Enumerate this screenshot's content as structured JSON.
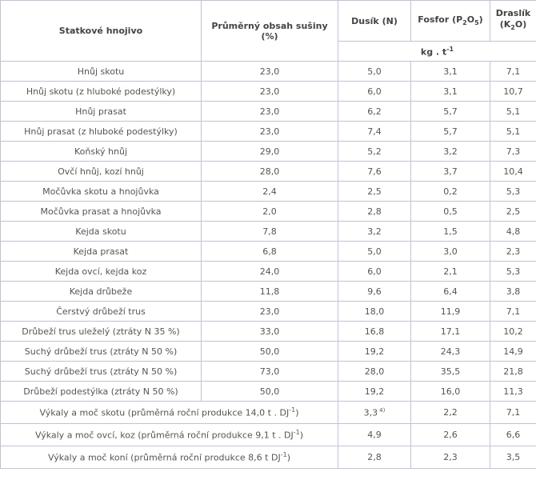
{
  "headers": {
    "col1": "Statkové hnojivo",
    "col2": "Průměrný obsah sušiny (%)",
    "col3": "Dusík (N)",
    "col4_main": "Fosfor (P",
    "col4_sub1": "2",
    "col4_mid": "O",
    "col4_sub2": "5",
    "col4_end": ")",
    "col5_main": "Draslík (K",
    "col5_sub": "2",
    "col5_end": "O)",
    "unit_main": "kg . t",
    "unit_sup": "-1"
  },
  "rows": [
    {
      "name": "Hnůj skotu",
      "dry": "23,0",
      "n": "5,0",
      "p": "3,1",
      "k": "7,1"
    },
    {
      "name": "Hnůj skotu (z hluboké podestýlky)",
      "dry": "23,0",
      "n": "6,0",
      "p": "3,1",
      "k": "10,7"
    },
    {
      "name": "Hnůj prasat",
      "dry": "23,0",
      "n": "6,2",
      "p": "5,7",
      "k": "5,1"
    },
    {
      "name": "Hnůj prasat (z hluboké podestýlky)",
      "dry": "23,0",
      "n": "7,4",
      "p": "5,7",
      "k": "5,1"
    },
    {
      "name": "Koňský hnůj",
      "dry": "29,0",
      "n": "5,2",
      "p": "3,2",
      "k": "7,3"
    },
    {
      "name": "Ovčí hnůj, kozí hnůj",
      "dry": "28,0",
      "n": "7,6",
      "p": "3,7",
      "k": "10,4"
    },
    {
      "name": "Močůvka skotu a hnojůvka",
      "dry": "2,4",
      "n": "2,5",
      "p": "0,2",
      "k": "5,3"
    },
    {
      "name": "Močůvka prasat a hnojůvka",
      "dry": "2,0",
      "n": "2,8",
      "p": "0,5",
      "k": "2,5"
    },
    {
      "name": "Kejda skotu",
      "dry": "7,8",
      "n": "3,2",
      "p": "1,5",
      "k": "4,8"
    },
    {
      "name": "Kejda prasat",
      "dry": "6,8",
      "n": "5,0",
      "p": "3,0",
      "k": "2,3"
    },
    {
      "name": "Kejda ovcí, kejda koz",
      "dry": "24,0",
      "n": "6,0",
      "p": "2,1",
      "k": "5,3"
    },
    {
      "name": "Kejda drůbeže",
      "dry": "11,8",
      "n": "9,6",
      "p": "6,4",
      "k": "3,8"
    },
    {
      "name": "Čerstvý drůbeží trus",
      "dry": "23,0",
      "n": "18,0",
      "p": "11,9",
      "k": "7,1"
    },
    {
      "name": "Drůbeží trus uleželý (ztráty N 35 %)",
      "dry": "33,0",
      "n": "16,8",
      "p": "17,1",
      "k": "10,2"
    },
    {
      "name": "Suchý drůbeží trus (ztráty N 50 %)",
      "dry": "50,0",
      "n": "19,2",
      "p": "24,3",
      "k": "14,9"
    },
    {
      "name": "Suchý drůbeží trus (ztráty N 50 %)",
      "dry": "73,0",
      "n": "28,0",
      "p": "35,5",
      "k": "21,8"
    },
    {
      "name": "Drůbeží podestýlka (ztráty N 50 %)",
      "dry": "50,0",
      "n": "19,2",
      "p": "16,0",
      "k": "11,3"
    }
  ],
  "long_rows": [
    {
      "name": "Výkaly a moč skotu (průměrná roční produkce 14,0 t . DJ",
      "sup": "-1",
      "end": ")",
      "n": "3,3",
      "n_note": "4)",
      "p": "2,2",
      "k": "7,1"
    },
    {
      "name": "Výkaly a moč ovcí, koz (průměrná roční produkce 9,1 t . DJ",
      "sup": "-1",
      "end": ")",
      "n": "4,9",
      "n_note": "",
      "p": "2,6",
      "k": "6,6"
    },
    {
      "name": "Výkaly a moč koní (průměrná roční produkce 8,6 t DJ",
      "sup": "-1",
      "end": ")",
      "n": "2,8",
      "n_note": "",
      "p": "2,3",
      "k": "3,5"
    }
  ]
}
